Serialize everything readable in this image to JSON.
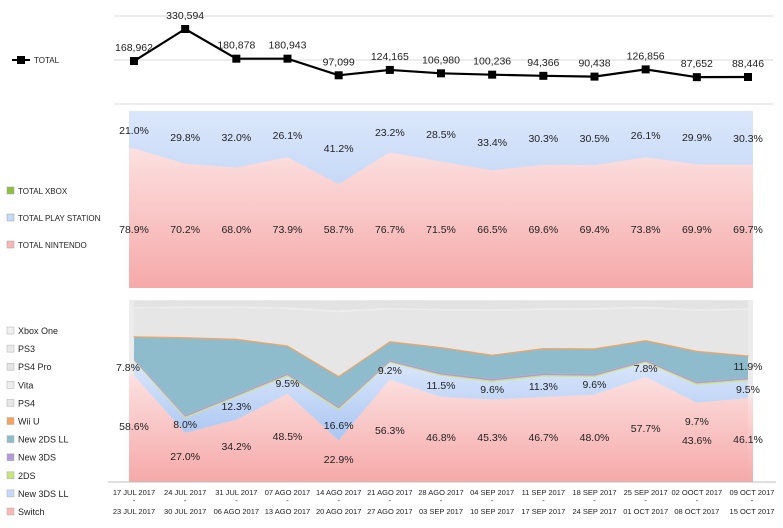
{
  "chart_data": [
    {
      "type": "line",
      "name": "totals",
      "legend": [
        "TOTAL"
      ],
      "categories": [
        "17 JUL 2017 - 23 JUL 2017",
        "24 JUL 2017 - 30 JUL 2017",
        "31 JUL 2017 - 06 AGO 2017",
        "07 AGO 2017 - 13 AGO 2017",
        "14 AGO 2017 - 20 AGO 2017",
        "21 AGO 2017 - 27 AGO 2017",
        "28 AGO 2017 - 03 SEP 2017",
        "04 SEP 2017 - 10 SEP 2017",
        "11 SEP 2017 - 17 SEP 2017",
        "18 SEP 2017 - 24 SEP 2017",
        "25 SEP 2017 - 01 OCT 2017",
        "02 OOCT 2017 - 08 OCT 2017",
        "09 OCT 2017 - 15 OCT 2017"
      ],
      "values": [
        168962,
        330594,
        180878,
        180943,
        97099,
        124165,
        106980,
        100236,
        94366,
        90438,
        126856,
        87652,
        88446
      ],
      "labels": [
        "168,962",
        "330,594",
        "180,878",
        "180,943",
        "97,099",
        "124,165",
        "106,980",
        "100,236",
        "94,366",
        "90,438",
        "126,856",
        "87,652",
        "88,446"
      ]
    },
    {
      "type": "area",
      "stacked": "percent",
      "name": "platform-share",
      "series": [
        {
          "name": "TOTAL NINTENDO",
          "values": [
            78.9,
            70.2,
            68.0,
            73.9,
            58.7,
            76.7,
            71.5,
            66.5,
            69.6,
            69.4,
            73.8,
            69.9,
            69.7
          ],
          "labels": [
            "78.9%",
            "70.2%",
            "68.0%",
            "73.9%",
            "58.7%",
            "76.7%",
            "71.5%",
            "66.5%",
            "69.6%",
            "69.4%",
            "73.8%",
            "69.9%",
            "69.7%"
          ],
          "color": "#f8b8b8"
        },
        {
          "name": "TOTAL PLAY STATION",
          "values": [
            21.0,
            29.8,
            32.0,
            26.1,
            41.2,
            23.2,
            28.5,
            33.4,
            30.3,
            30.5,
            26.1,
            29.9,
            30.3
          ],
          "labels": [
            "21.0%",
            "29.8%",
            "32.0%",
            "26.1%",
            "41.2%",
            "23.2%",
            "28.5%",
            "33.4%",
            "30.3%",
            "30.5%",
            "26.1%",
            "29.9%",
            "30.3%"
          ],
          "color": "#c6d9f7"
        },
        {
          "name": "TOTAL XBOX",
          "values": [
            0.1,
            0,
            0,
            0,
            0.1,
            0.1,
            0,
            0.1,
            0.1,
            0.1,
            0.1,
            0.2,
            0
          ],
          "color": "#8fbf3f"
        }
      ]
    },
    {
      "type": "area",
      "stacked": "percent",
      "name": "console-share",
      "series": [
        {
          "name": "Switch",
          "values": [
            58.6,
            27.0,
            34.2,
            48.5,
            22.9,
            56.3,
            46.8,
            45.3,
            46.7,
            48.0,
            57.7,
            43.6,
            46.1
          ],
          "labels": [
            "58.6%",
            "27.0%",
            "34.2%",
            "48.5%",
            "22.9%",
            "56.3%",
            "46.8%",
            "45.3%",
            "46.7%",
            "48.0%",
            "57.7%",
            "43.6%",
            "46.1%"
          ],
          "color": "#f8b8b8"
        },
        {
          "name": "New 3DS LL",
          "values": [
            7.8,
            8.0,
            12.3,
            9.5,
            16.6,
            9.2,
            11.5,
            9.6,
            11.3,
            9.6,
            7.8,
            9.7,
            9.5
          ],
          "labels": [
            "7.8%",
            "8.0%",
            "12.3%",
            "9.5%",
            "16.6%",
            "9.2%",
            "11.5%",
            "9.6%",
            "11.3%",
            "9.6%",
            "7.8%",
            "9.7%",
            "9.5%"
          ],
          "color": "#c6d9f7"
        },
        {
          "name": "2DS",
          "values": [
            0.6,
            0.8,
            0.7,
            0.8,
            0.9,
            0.6,
            0.7,
            0.8,
            0.7,
            0.8,
            0.7,
            0.8,
            0.8
          ],
          "color": "#c8e57a"
        },
        {
          "name": "New 3DS",
          "values": [
            0.8,
            0.9,
            0.8,
            0.9,
            1.0,
            0.8,
            0.9,
            1.0,
            0.9,
            0.9,
            0.8,
            1.0,
            0.9
          ],
          "color": "#b39ad6"
        },
        {
          "name": "New 2DS LL",
          "values": [
            11.9,
            42.5,
            30.3,
            15.0,
            16.5,
            10.1,
            13.9,
            12.9,
            13.6,
            13.8,
            10.6,
            16.6,
            11.9
          ],
          "labels": [
            "",
            "",
            "",
            "",
            "",
            "",
            "",
            "",
            "",
            "",
            "",
            "",
            "11.9%"
          ],
          "color": "#8fbccc"
        },
        {
          "name": "Wii U",
          "values": [
            0.4,
            0.4,
            0.4,
            0.4,
            0.4,
            0.4,
            0.4,
            0.4,
            0.4,
            0.4,
            0.4,
            0.4,
            0.4
          ],
          "color": "#f4a460"
        },
        {
          "name": "PS4",
          "values": [
            15.3,
            16.0,
            17.0,
            20.0,
            35.0,
            17.5,
            20.0,
            24.0,
            21.0,
            21.3,
            17.5,
            22.0,
            25.0
          ],
          "color": "#e6e6e6"
        },
        {
          "name": "Vita",
          "values": [
            0.6,
            0.8,
            0.8,
            0.8,
            1.0,
            0.8,
            0.8,
            0.8,
            0.8,
            0.8,
            0.8,
            0.8,
            0.8
          ],
          "color": "#ededed"
        },
        {
          "name": "PS4 Pro",
          "values": [
            3.5,
            3.2,
            3.1,
            3.6,
            5.2,
            3.9,
            4.5,
            4.7,
            4.2,
            4.0,
            3.3,
            4.7,
            4.2
          ],
          "color": "#e3e3e3"
        },
        {
          "name": "PS3",
          "values": [
            0.4,
            0.4,
            0.4,
            0.5,
            0.4,
            0.4,
            0.5,
            0.5,
            0.4,
            0.4,
            0.4,
            0.4,
            0.4
          ],
          "color": "#e9e9e9"
        },
        {
          "name": "Xbox One",
          "values": [
            0.1,
            0,
            0,
            0,
            0.1,
            0.1,
            0,
            0.1,
            0.1,
            0.1,
            0.1,
            0.2,
            0
          ],
          "color": "#f0f0f0"
        }
      ]
    }
  ]
}
